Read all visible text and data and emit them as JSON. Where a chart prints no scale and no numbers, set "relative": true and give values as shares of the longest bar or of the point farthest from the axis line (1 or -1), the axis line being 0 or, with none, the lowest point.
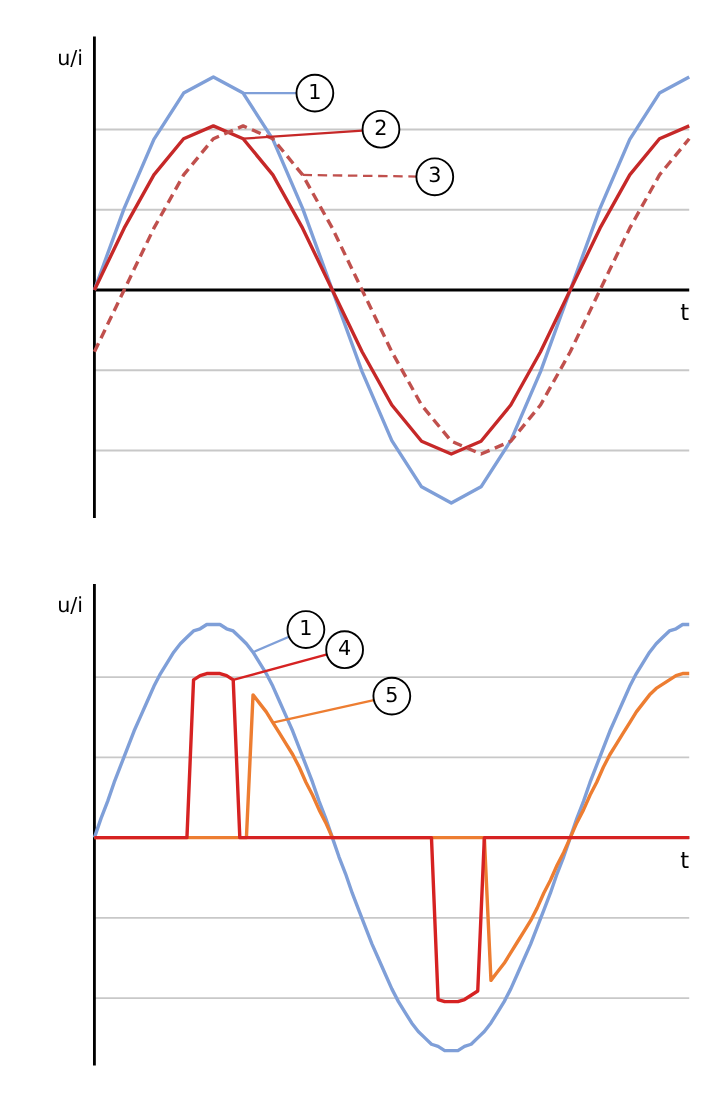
{
  "chart_data": [
    {
      "type": "line",
      "relative": true,
      "xlabel": "t",
      "ylabel": "u/i",
      "grid": "y",
      "categories": [
        null,
        null,
        null,
        null,
        null,
        null,
        null,
        null,
        null,
        null,
        null,
        null,
        null,
        null,
        null,
        null,
        null,
        null,
        null,
        null,
        null
      ],
      "series": [
        {
          "color": "#7f9fd8",
          "line_style": "solid",
          "values": [
            0,
            0.383,
            0.707,
            0.924,
            1,
            0.924,
            0.707,
            0.383,
            0,
            -0.383,
            -0.707,
            -0.924,
            -1,
            -0.924,
            -0.707,
            -0.383,
            0,
            0.383,
            0.707,
            0.924,
            1
          ]
        },
        {
          "color": "#c62828",
          "line_style": "solid",
          "values": [
            0,
            0.29,
            0.54,
            0.71,
            0.77,
            0.71,
            0.54,
            0.29,
            0,
            -0.29,
            -0.54,
            -0.71,
            -0.77,
            -0.71,
            -0.54,
            -0.29,
            0,
            0.29,
            0.54,
            0.71,
            0.77
          ]
        },
        {
          "color": "#c0504d",
          "line_style": "dashed",
          "values": [
            -0.29,
            0,
            0.29,
            0.54,
            0.71,
            0.77,
            0.71,
            0.54,
            0.29,
            0,
            -0.29,
            -0.54,
            -0.71,
            -0.77,
            -0.71,
            -0.54,
            -0.29,
            0,
            0.29,
            0.54,
            0.71
          ]
        }
      ],
      "annotations": [
        "1",
        "2",
        "3"
      ]
    },
    {
      "type": "line",
      "relative": true,
      "xlabel": "t",
      "ylabel": "u/i",
      "grid": "y",
      "categories": [
        null,
        null,
        null,
        null,
        null,
        null,
        null,
        null,
        null,
        null,
        null,
        null,
        null,
        null,
        null,
        null,
        null,
        null,
        null,
        null,
        null,
        null,
        null,
        null,
        null,
        null,
        null,
        null,
        null,
        null,
        null,
        null,
        null,
        null,
        null,
        null,
        null,
        null,
        null,
        null,
        null,
        null,
        null,
        null,
        null,
        null,
        null,
        null,
        null,
        null,
        null,
        null,
        null,
        null,
        null,
        null,
        null,
        null,
        null,
        null,
        null,
        null,
        null,
        null,
        null,
        null,
        null,
        null,
        null,
        null,
        null,
        null,
        null,
        null,
        null,
        null,
        null,
        null,
        null,
        null,
        null,
        null,
        null,
        null,
        null,
        null,
        null,
        null,
        null,
        null,
        null
      ],
      "series": [
        {
          "color": "#7f9fd8",
          "line_style": "solid",
          "values": [
            0,
            0.09,
            0.17,
            0.26,
            0.34,
            0.42,
            0.5,
            0.57,
            0.64,
            0.71,
            0.77,
            0.82,
            0.87,
            0.91,
            0.94,
            0.97,
            0.98,
            1,
            1,
            1,
            0.98,
            0.97,
            0.94,
            0.91,
            0.87,
            0.82,
            0.77,
            0.71,
            0.64,
            0.57,
            0.5,
            0.42,
            0.34,
            0.26,
            0.17,
            0.09,
            0,
            -0.09,
            -0.17,
            -0.26,
            -0.34,
            -0.42,
            -0.5,
            -0.57,
            -0.64,
            -0.71,
            -0.77,
            -0.82,
            -0.87,
            -0.91,
            -0.94,
            -0.97,
            -0.98,
            -1,
            -1,
            -1,
            -0.98,
            -0.97,
            -0.94,
            -0.91,
            -0.87,
            -0.82,
            -0.77,
            -0.71,
            -0.64,
            -0.57,
            -0.5,
            -0.42,
            -0.34,
            -0.26,
            -0.17,
            -0.09,
            0,
            0.09,
            0.17,
            0.26,
            0.34,
            0.42,
            0.5,
            0.57,
            0.64,
            0.71,
            0.77,
            0.82,
            0.87,
            0.91,
            0.94,
            0.97,
            0.98,
            1,
            1
          ]
        },
        {
          "color": "#ed7d31",
          "line_style": "solid",
          "values": [
            0,
            0,
            0,
            0,
            0,
            0,
            0,
            0,
            0,
            0,
            0,
            0,
            0,
            0,
            0,
            0,
            0,
            0,
            0,
            0,
            0,
            0,
            0,
            0,
            0.67,
            0.63,
            0.59,
            0.54,
            0.49,
            0.44,
            0.39,
            0.33,
            0.26,
            0.2,
            0.13,
            0.07,
            0,
            0,
            0,
            0,
            0,
            0,
            0,
            0,
            0,
            0,
            0,
            0,
            0,
            0,
            0,
            0,
            0,
            0,
            0,
            0,
            0,
            0,
            0,
            0,
            -0.67,
            -0.63,
            -0.59,
            -0.54,
            -0.49,
            -0.44,
            -0.39,
            -0.33,
            -0.26,
            -0.2,
            -0.13,
            -0.07,
            0,
            0.07,
            0.13,
            0.2,
            0.26,
            0.33,
            0.39,
            0.44,
            0.49,
            0.54,
            0.59,
            0.63,
            0.67,
            0.7,
            0.72,
            0.74,
            0.76,
            0.77,
            0.77
          ]
        },
        {
          "color": "#d62222",
          "line_style": "solid",
          "values": [
            0,
            0,
            0,
            0,
            0,
            0,
            0,
            0,
            0,
            0,
            0,
            0,
            0,
            0,
            0,
            0.74,
            0.76,
            0.77,
            0.77,
            0.77,
            0.76,
            0.74,
            0,
            0,
            0,
            0,
            0,
            0,
            0,
            0,
            0,
            0,
            0,
            0,
            0,
            0,
            0,
            0,
            0,
            0,
            0,
            0,
            0,
            0,
            0,
            0,
            0,
            0,
            0,
            0,
            0,
            0,
            -0.76,
            -0.77,
            -0.77,
            -0.77,
            -0.76,
            -0.74,
            -0.72,
            0,
            0,
            0,
            0,
            0,
            0,
            0,
            0,
            0,
            0,
            0,
            0,
            0,
            0,
            0,
            0,
            0,
            0,
            0,
            0,
            0,
            0,
            0,
            0,
            0,
            0,
            0,
            0,
            0,
            0,
            0,
            0
          ]
        }
      ],
      "annotations": [
        "1",
        "4",
        "5"
      ]
    }
  ]
}
